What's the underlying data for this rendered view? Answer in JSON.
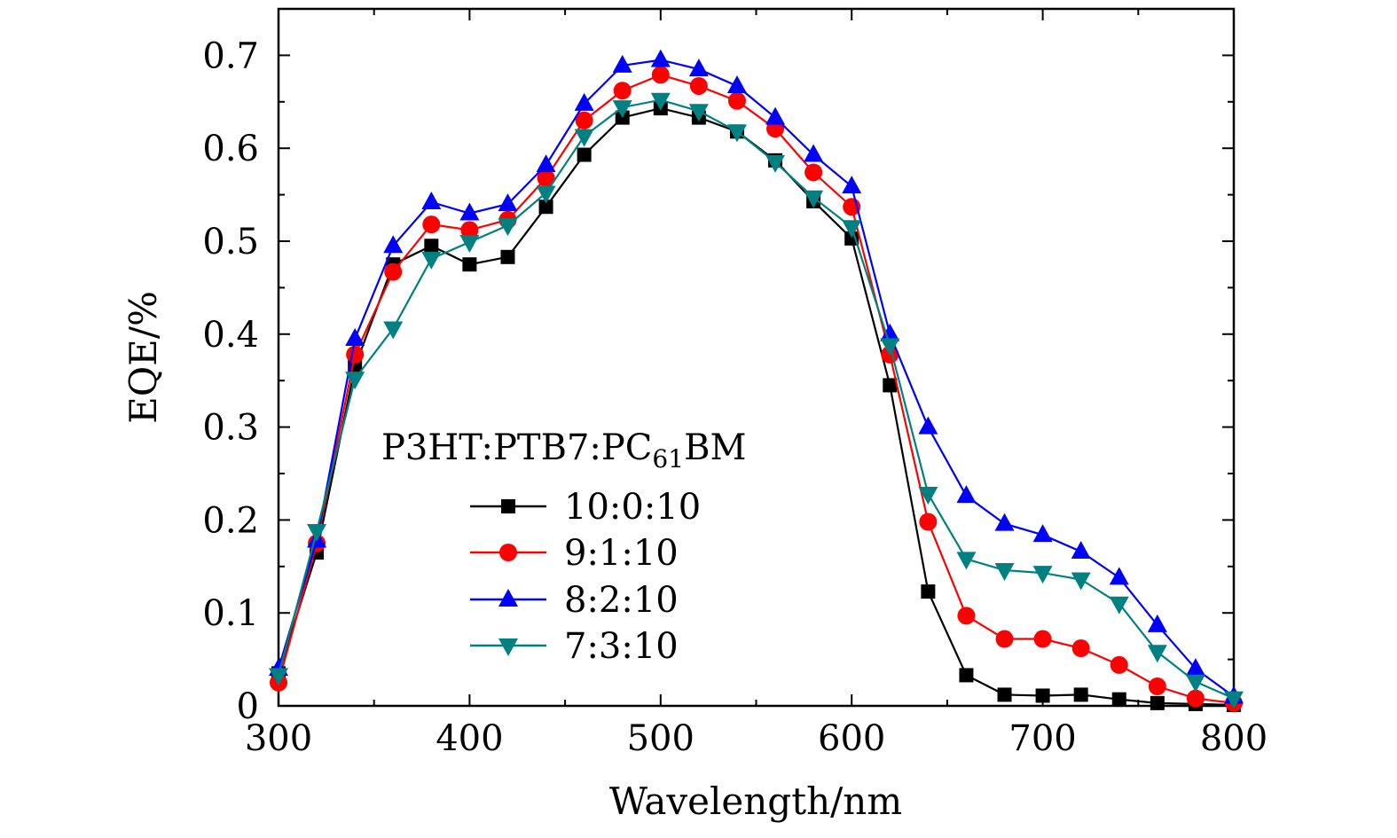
{
  "chart_data": {
    "type": "line",
    "xlabel": "Wavelength/nm",
    "ylabel": "EQE/%",
    "xlim": [
      300,
      800
    ],
    "ylim": [
      0,
      0.75
    ],
    "xticks": [
      300,
      400,
      500,
      600,
      700,
      800
    ],
    "xtick_labels": [
      "300",
      "400",
      "500",
      "600",
      "700",
      "800"
    ],
    "yticks": [
      0,
      0.1,
      0.2,
      0.3,
      0.4,
      0.5,
      0.6,
      0.7
    ],
    "ytick_labels": [
      "0",
      "0.1",
      "0.2",
      "0.3",
      "0.4",
      "0.5",
      "0.6",
      "0.7"
    ],
    "grid": false,
    "legend": {
      "position": "lower-left inside",
      "title_main": "P3HT:PTB7:PC",
      "title_sub": "61",
      "title_tail": "BM"
    },
    "x": [
      300,
      320,
      340,
      360,
      380,
      400,
      420,
      440,
      460,
      480,
      500,
      520,
      540,
      560,
      580,
      600,
      620,
      640,
      660,
      680,
      700,
      720,
      740,
      760,
      780,
      800
    ],
    "series": [
      {
        "name": "10:0:10",
        "color": "#000000",
        "marker": "square",
        "values": [
          0.035,
          0.165,
          0.365,
          0.475,
          0.495,
          0.475,
          0.483,
          0.537,
          0.593,
          0.633,
          0.643,
          0.633,
          0.618,
          0.587,
          0.543,
          0.503,
          0.345,
          0.123,
          0.033,
          0.012,
          0.011,
          0.012,
          0.007,
          0.003,
          0.002,
          0.001
        ]
      },
      {
        "name": "9:1:10",
        "color": "#ff0000",
        "marker": "circle",
        "values": [
          0.025,
          0.175,
          0.378,
          0.467,
          0.518,
          0.512,
          0.523,
          0.568,
          0.63,
          0.662,
          0.679,
          0.667,
          0.651,
          0.621,
          0.574,
          0.537,
          0.378,
          0.198,
          0.097,
          0.072,
          0.072,
          0.062,
          0.044,
          0.021,
          0.008,
          0.003
        ]
      },
      {
        "name": "8:2:10",
        "color": "#0000ff",
        "marker": "triangle-up",
        "values": [
          0.04,
          0.178,
          0.395,
          0.495,
          0.542,
          0.53,
          0.54,
          0.582,
          0.648,
          0.689,
          0.695,
          0.685,
          0.667,
          0.633,
          0.593,
          0.559,
          0.4,
          0.3,
          0.226,
          0.196,
          0.184,
          0.166,
          0.138,
          0.087,
          0.04,
          0.01
        ]
      },
      {
        "name": "7:3:10",
        "color": "#008080",
        "marker": "triangle-down",
        "values": [
          0.033,
          0.188,
          0.352,
          0.406,
          0.481,
          0.499,
          0.517,
          0.552,
          0.613,
          0.644,
          0.652,
          0.64,
          0.618,
          0.585,
          0.547,
          0.515,
          0.388,
          0.228,
          0.158,
          0.146,
          0.143,
          0.136,
          0.11,
          0.058,
          0.026,
          0.008
        ]
      }
    ]
  }
}
